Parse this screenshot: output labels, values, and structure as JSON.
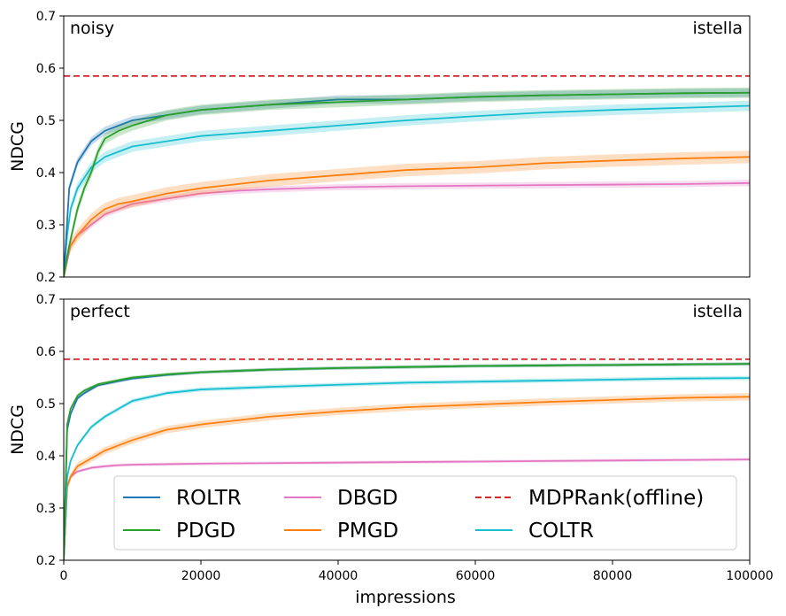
{
  "figure": {
    "xlabel": "impressions",
    "x_ticks": [
      0,
      20000,
      40000,
      60000,
      80000,
      100000
    ],
    "y_ticks": [
      "0.2",
      "0.3",
      "0.4",
      "0.5",
      "0.6",
      "0.7"
    ]
  },
  "chart_data": [
    {
      "type": "line",
      "panel": "top",
      "condition": "noisy",
      "dataset": "istella",
      "xlabel": "impressions",
      "ylabel": "NDCG",
      "xlim": [
        0,
        100000
      ],
      "ylim": [
        0.2,
        0.7
      ],
      "reference_line": {
        "name": "MDPRank(offline)",
        "y": 0.585
      },
      "series": [
        {
          "name": "ROLTR",
          "x": [
            0,
            800,
            2000,
            4000,
            6000,
            8000,
            10000,
            15000,
            20000,
            30000,
            40000,
            50000,
            60000,
            70000,
            80000,
            90000,
            100000
          ],
          "y": [
            0.2,
            0.37,
            0.42,
            0.46,
            0.48,
            0.49,
            0.5,
            0.51,
            0.52,
            0.53,
            0.54,
            0.54,
            0.545,
            0.548,
            0.55,
            0.552,
            0.553
          ],
          "band": 0.008
        },
        {
          "name": "PDGD",
          "x": [
            0,
            800,
            2000,
            3000,
            4000,
            5000,
            6000,
            8000,
            10000,
            15000,
            20000,
            30000,
            40000,
            50000,
            60000,
            70000,
            80000,
            90000,
            100000
          ],
          "y": [
            0.2,
            0.26,
            0.33,
            0.37,
            0.4,
            0.44,
            0.465,
            0.48,
            0.49,
            0.51,
            0.52,
            0.53,
            0.535,
            0.54,
            0.545,
            0.548,
            0.55,
            0.552,
            0.553
          ],
          "band": 0.01
        },
        {
          "name": "DBGD",
          "x": [
            0,
            500,
            1000,
            2000,
            4000,
            6000,
            8000,
            10000,
            15000,
            20000,
            25000,
            30000,
            40000,
            50000,
            60000,
            70000,
            80000,
            90000,
            100000
          ],
          "y": [
            0.2,
            0.23,
            0.26,
            0.28,
            0.3,
            0.32,
            0.33,
            0.34,
            0.35,
            0.36,
            0.365,
            0.368,
            0.372,
            0.374,
            0.375,
            0.376,
            0.377,
            0.378,
            0.38
          ],
          "band": 0.006
        },
        {
          "name": "PMGD",
          "x": [
            0,
            500,
            1000,
            2000,
            4000,
            6000,
            8000,
            10000,
            15000,
            20000,
            30000,
            40000,
            50000,
            60000,
            70000,
            80000,
            90000,
            100000
          ],
          "y": [
            0.2,
            0.24,
            0.26,
            0.28,
            0.31,
            0.33,
            0.34,
            0.345,
            0.36,
            0.37,
            0.385,
            0.395,
            0.405,
            0.41,
            0.418,
            0.423,
            0.427,
            0.43
          ],
          "band": 0.012
        },
        {
          "name": "COLTR",
          "x": [
            0,
            500,
            1000,
            2000,
            4000,
            6000,
            8000,
            10000,
            15000,
            20000,
            30000,
            40000,
            50000,
            60000,
            70000,
            80000,
            90000,
            100000
          ],
          "y": [
            0.2,
            0.28,
            0.33,
            0.37,
            0.41,
            0.43,
            0.44,
            0.45,
            0.46,
            0.47,
            0.48,
            0.49,
            0.5,
            0.508,
            0.515,
            0.52,
            0.524,
            0.528
          ],
          "band": 0.01
        }
      ]
    },
    {
      "type": "line",
      "panel": "bottom",
      "condition": "perfect",
      "dataset": "istella",
      "xlabel": "impressions",
      "ylabel": "NDCG",
      "xlim": [
        0,
        100000
      ],
      "ylim": [
        0.2,
        0.7
      ],
      "reference_line": {
        "name": "MDPRank(offline)",
        "y": 0.585
      },
      "series": [
        {
          "name": "ROLTR",
          "x": [
            0,
            500,
            1000,
            2000,
            3000,
            5000,
            8000,
            10000,
            15000,
            20000,
            30000,
            40000,
            50000,
            60000,
            70000,
            80000,
            90000,
            100000
          ],
          "y": [
            0.2,
            0.45,
            0.48,
            0.51,
            0.52,
            0.535,
            0.543,
            0.548,
            0.555,
            0.56,
            0.565,
            0.568,
            0.57,
            0.572,
            0.573,
            0.574,
            0.575,
            0.576
          ],
          "band": 0.003
        },
        {
          "name": "PDGD",
          "x": [
            0,
            500,
            1000,
            2000,
            3000,
            5000,
            8000,
            10000,
            15000,
            20000,
            30000,
            40000,
            50000,
            60000,
            70000,
            80000,
            90000,
            100000
          ],
          "y": [
            0.2,
            0.46,
            0.49,
            0.515,
            0.525,
            0.537,
            0.545,
            0.55,
            0.556,
            0.56,
            0.565,
            0.568,
            0.57,
            0.572,
            0.573,
            0.574,
            0.575,
            0.576
          ],
          "band": 0.003
        },
        {
          "name": "DBGD",
          "x": [
            0,
            500,
            1000,
            2000,
            4000,
            6000,
            8000,
            10000,
            15000,
            20000,
            30000,
            40000,
            50000,
            60000,
            70000,
            80000,
            90000,
            100000
          ],
          "y": [
            0.2,
            0.34,
            0.36,
            0.37,
            0.377,
            0.38,
            0.382,
            0.383,
            0.384,
            0.385,
            0.386,
            0.387,
            0.388,
            0.389,
            0.39,
            0.391,
            0.392,
            0.393
          ],
          "band": 0.003
        },
        {
          "name": "PMGD",
          "x": [
            0,
            500,
            1000,
            2000,
            4000,
            6000,
            8000,
            10000,
            15000,
            20000,
            30000,
            40000,
            50000,
            60000,
            70000,
            80000,
            90000,
            100000
          ],
          "y": [
            0.2,
            0.34,
            0.36,
            0.38,
            0.395,
            0.41,
            0.42,
            0.43,
            0.45,
            0.46,
            0.475,
            0.485,
            0.493,
            0.498,
            0.503,
            0.507,
            0.511,
            0.513
          ],
          "band": 0.007
        },
        {
          "name": "COLTR",
          "x": [
            0,
            500,
            1000,
            2000,
            4000,
            6000,
            8000,
            10000,
            15000,
            20000,
            30000,
            40000,
            50000,
            60000,
            70000,
            80000,
            90000,
            100000
          ],
          "y": [
            0.2,
            0.36,
            0.39,
            0.42,
            0.455,
            0.475,
            0.49,
            0.505,
            0.52,
            0.527,
            0.532,
            0.536,
            0.54,
            0.542,
            0.544,
            0.546,
            0.548,
            0.549
          ],
          "band": 0.004
        }
      ]
    }
  ],
  "legend": [
    {
      "name": "ROLTR",
      "style": "solid"
    },
    {
      "name": "PDGD",
      "style": "solid"
    },
    {
      "name": "DBGD",
      "style": "solid"
    },
    {
      "name": "PMGD",
      "style": "solid"
    },
    {
      "name": "MDPRank(offline)",
      "style": "dashed"
    },
    {
      "name": "COLTR",
      "style": "solid"
    }
  ],
  "colors": {
    "ROLTR": "#1f77b4",
    "PDGD": "#2ca02c",
    "DBGD": "#e377c2",
    "PMGD": "#ff7f0e",
    "COLTR": "#17becf",
    "MDPRank(offline)": "#d62728"
  }
}
